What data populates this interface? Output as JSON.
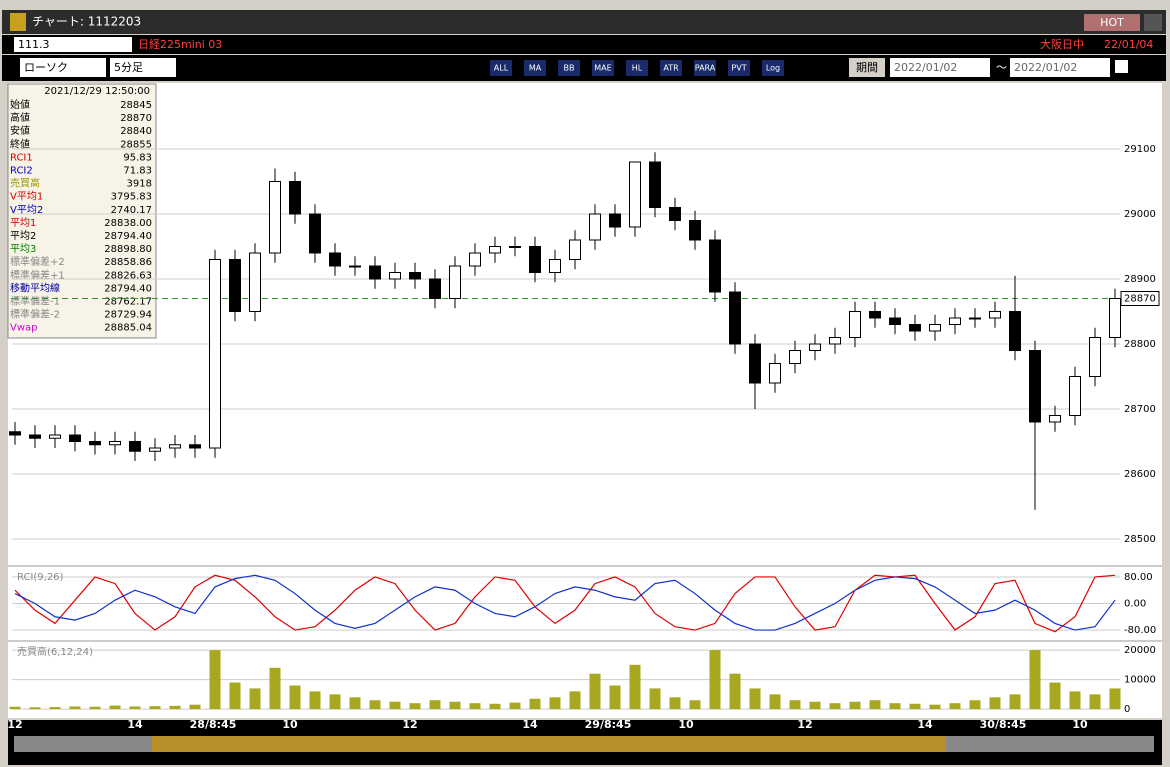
{
  "window": {
    "title": "チャート: 1112203",
    "hot": "HOT"
  },
  "symbol_bar": {
    "code": "111.3",
    "name": "日経225mini 03",
    "session": "大阪日中",
    "date": "22/01/04"
  },
  "toolbar": {
    "chart_kind": "ローソク",
    "interval": "5分足",
    "icons": [
      "ALL",
      "MA",
      "BB",
      "MAE",
      "HL",
      "ATR",
      "PARA",
      "PVT",
      "Log"
    ],
    "period": "期間",
    "from": "2022/01/02",
    "sep": "〜",
    "to": "2022/01/02"
  },
  "info_panel": {
    "header": "2021/12/29 12:50:00",
    "rows": [
      {
        "label": "始値",
        "value": "28845",
        "color": "#000000"
      },
      {
        "label": "高値",
        "value": "28870",
        "color": "#000000"
      },
      {
        "label": "安値",
        "value": "28840",
        "color": "#000000"
      },
      {
        "label": "終値",
        "value": "28855",
        "color": "#000000"
      },
      {
        "label": "RCI1",
        "value": "95.83",
        "color": "#d00000"
      },
      {
        "label": "RCI2",
        "value": "71.83",
        "color": "#0000c0"
      },
      {
        "label": "売買高",
        "value": "3918",
        "color": "#999900"
      },
      {
        "label": "V平均1",
        "value": "3795.83",
        "color": "#d00000"
      },
      {
        "label": "V平均2",
        "value": "2740.17",
        "color": "#0000c0"
      },
      {
        "label": "平均1",
        "value": "28838.00",
        "color": "#d00000"
      },
      {
        "label": "平均2",
        "value": "28794.40",
        "color": "#000000"
      },
      {
        "label": "平均3",
        "value": "28898.80",
        "color": "#008000"
      },
      {
        "label": "標準偏差+2",
        "value": "28858.86",
        "color": "#888888"
      },
      {
        "label": "標準偏差+1",
        "value": "28826.63",
        "color": "#888888"
      },
      {
        "label": "移動平均線",
        "value": "28794.40",
        "color": "#0000a0"
      },
      {
        "label": "標準偏差-1",
        "value": "28762.17",
        "color": "#888888"
      },
      {
        "label": "標準偏差-2",
        "value": "28729.94",
        "color": "#888888"
      },
      {
        "label": "Vwap",
        "value": "28885.04",
        "color": "#d000d0"
      }
    ]
  },
  "time_labels": [
    "12",
    "14",
    "28/8:45",
    "10",
    "12",
    "14",
    "29/8:45",
    "10",
    "12",
    "14",
    "30/8:45",
    "10"
  ],
  "chart_data": [
    {
      "type": "candlestick",
      "ylim": [
        28460,
        29200
      ],
      "yticks": [
        28500,
        28600,
        28700,
        28800,
        28900,
        29000,
        29100
      ],
      "current_price": 28870,
      "up_color": "#ffffff",
      "down_color": "#000000",
      "open": [
        28665,
        28660,
        28655,
        28660,
        28650,
        28645,
        28650,
        28635,
        28640,
        28645,
        28640,
        28930,
        28850,
        28940,
        29050,
        29000,
        28940,
        28920,
        28920,
        28900,
        28910,
        28900,
        28870,
        28920,
        28940,
        28950,
        28950,
        28910,
        28930,
        28960,
        29000,
        28980,
        29080,
        29010,
        28990,
        28960,
        28880,
        28800,
        28740,
        28770,
        28790,
        28800,
        28810,
        28850,
        28840,
        28830,
        28820,
        28830,
        28840,
        28840,
        28850,
        28790,
        28680,
        28690,
        28750,
        28810
      ],
      "high": [
        28680,
        28675,
        28675,
        28675,
        28665,
        28665,
        28665,
        28655,
        28660,
        28660,
        28945,
        28945,
        28955,
        29070,
        29065,
        29015,
        28955,
        28935,
        28935,
        28925,
        28925,
        28915,
        28935,
        28955,
        28965,
        28965,
        28965,
        28945,
        28975,
        29015,
        29015,
        29080,
        29095,
        29025,
        29005,
        28975,
        28895,
        28815,
        28785,
        28805,
        28815,
        28825,
        28865,
        28865,
        28855,
        28845,
        28845,
        28855,
        28855,
        28865,
        28905,
        28805,
        28705,
        28765,
        28825,
        28885
      ],
      "low": [
        28645,
        28640,
        28640,
        28635,
        28630,
        28630,
        28620,
        28620,
        28625,
        28625,
        28625,
        28835,
        28835,
        28925,
        28985,
        28925,
        28905,
        28905,
        28885,
        28885,
        28885,
        28855,
        28855,
        28905,
        28925,
        28935,
        28895,
        28895,
        28915,
        28945,
        28965,
        28965,
        28995,
        28975,
        28945,
        28865,
        28785,
        28700,
        28725,
        28755,
        28775,
        28785,
        28795,
        28825,
        28815,
        28805,
        28805,
        28815,
        28825,
        28825,
        28775,
        28545,
        28665,
        28675,
        28735,
        28795
      ],
      "close": [
        28660,
        28655,
        28660,
        28650,
        28645,
        28650,
        28635,
        28640,
        28645,
        28640,
        28930,
        28850,
        28940,
        29050,
        29000,
        28940,
        28920,
        28920,
        28900,
        28910,
        28900,
        28870,
        28920,
        28940,
        28950,
        28950,
        28910,
        28930,
        28960,
        29000,
        28980,
        29080,
        29010,
        28990,
        28960,
        28880,
        28800,
        28740,
        28770,
        28790,
        28800,
        28810,
        28850,
        28840,
        28830,
        28820,
        28830,
        28840,
        28840,
        28850,
        28790,
        28680,
        28690,
        28750,
        28810,
        28870
      ]
    },
    {
      "type": "line",
      "title": "RCI(9,26)",
      "ylim": [
        -110,
        107
      ],
      "yticks": [
        {
          "value": 80,
          "label": "80.00"
        },
        {
          "value": 0,
          "label": "0.00"
        },
        {
          "value": -80,
          "label": "-80.00"
        }
      ],
      "series": [
        {
          "name": "RCI1",
          "color": "#e00000",
          "values": [
            40,
            -20,
            -60,
            10,
            80,
            60,
            -30,
            -80,
            -40,
            50,
            85,
            70,
            20,
            -40,
            -80,
            -70,
            -20,
            40,
            80,
            60,
            -20,
            -80,
            -60,
            20,
            80,
            70,
            -10,
            -60,
            -20,
            60,
            80,
            50,
            -30,
            -70,
            -80,
            -60,
            30,
            80,
            80,
            -10,
            -80,
            -70,
            40,
            85,
            80,
            85,
            0,
            -80,
            -40,
            60,
            70,
            -60,
            -85,
            -40,
            80,
            85
          ]
        },
        {
          "name": "RCI2",
          "color": "#1030d0",
          "values": [
            30,
            0,
            -40,
            -50,
            -30,
            10,
            40,
            20,
            -10,
            -30,
            50,
            75,
            85,
            70,
            30,
            -20,
            -60,
            -75,
            -60,
            -20,
            20,
            50,
            40,
            0,
            -30,
            -40,
            -10,
            30,
            50,
            40,
            20,
            10,
            60,
            70,
            30,
            -20,
            -60,
            -80,
            -80,
            -60,
            -30,
            0,
            40,
            70,
            80,
            75,
            50,
            10,
            -30,
            -20,
            10,
            -20,
            -60,
            -80,
            -70,
            10
          ]
        }
      ]
    },
    {
      "type": "bar",
      "title": "売買高(6,12,24)",
      "ylim": [
        -2000,
        22400
      ],
      "yticks": [
        20000,
        10000,
        0
      ],
      "color": "#a8a820",
      "values": [
        800,
        600,
        700,
        900,
        800,
        1200,
        900,
        1000,
        1100,
        1500,
        20000,
        9000,
        7000,
        14000,
        8000,
        6000,
        5000,
        4000,
        3000,
        2500,
        2000,
        3000,
        2500,
        2000,
        1800,
        2200,
        3500,
        4000,
        6000,
        12000,
        8000,
        15000,
        7000,
        4000,
        3000,
        20000,
        12000,
        7000,
        5000,
        3000,
        2500,
        2000,
        2500,
        3000,
        2000,
        1800,
        1500,
        2000,
        3000,
        4000,
        5000,
        20000,
        9000,
        6000,
        5000,
        7000
      ]
    }
  ]
}
